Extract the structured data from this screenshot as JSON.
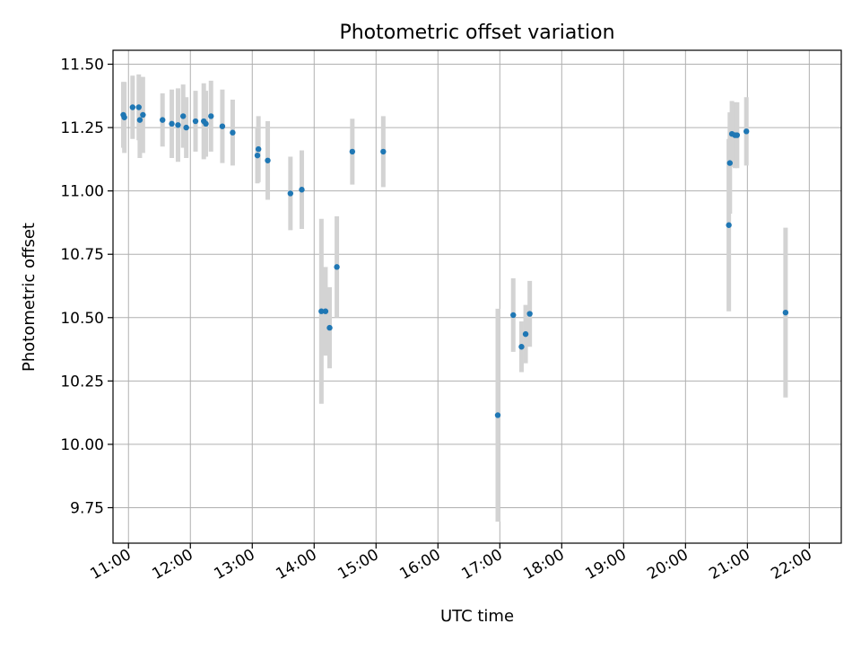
{
  "chart_data": {
    "type": "scatter",
    "title": "Photometric offset variation",
    "xlabel": "UTC time",
    "ylabel": "Photometric offset",
    "x_tick_labels": [
      "11:00",
      "12:00",
      "13:00",
      "14:00",
      "15:00",
      "16:00",
      "17:00",
      "18:00",
      "19:00",
      "20:00",
      "21:00",
      "22:00"
    ],
    "y_ticks": [
      9.75,
      10.0,
      10.25,
      10.5,
      10.75,
      11.0,
      11.25,
      11.5
    ],
    "y_tick_labels": [
      "9.75",
      "10.00",
      "10.25",
      "10.50",
      "10.75",
      "11.00",
      "11.25",
      "11.50"
    ],
    "xlim": [
      "10:45",
      "22:31"
    ],
    "ylim": [
      9.61,
      11.555
    ],
    "grid": true,
    "series": [
      {
        "marker_color": "#1f77b4",
        "errorbar_color": "#d3d3d3",
        "points": [
          {
            "x": "10:55",
            "y": 11.3,
            "yerr": 0.13
          },
          {
            "x": "10:56",
            "y": 11.29,
            "yerr": 0.14
          },
          {
            "x": "11:04",
            "y": 11.33,
            "yerr": 0.125
          },
          {
            "x": "11:10",
            "y": 11.33,
            "yerr": 0.13
          },
          {
            "x": "11:11",
            "y": 11.28,
            "yerr": 0.15
          },
          {
            "x": "11:14",
            "y": 11.3,
            "yerr": 0.15
          },
          {
            "x": "11:33",
            "y": 11.28,
            "yerr": 0.105
          },
          {
            "x": "11:42",
            "y": 11.265,
            "yerr": 0.135
          },
          {
            "x": "11:48",
            "y": 11.26,
            "yerr": 0.145
          },
          {
            "x": "11:53",
            "y": 11.295,
            "yerr": 0.125
          },
          {
            "x": "11:56",
            "y": 11.25,
            "yerr": 0.12
          },
          {
            "x": "12:05",
            "y": 11.275,
            "yerr": 0.12
          },
          {
            "x": "12:13",
            "y": 11.275,
            "yerr": 0.15
          },
          {
            "x": "12:15",
            "y": 11.265,
            "yerr": 0.13
          },
          {
            "x": "12:20",
            "y": 11.295,
            "yerr": 0.14
          },
          {
            "x": "12:31",
            "y": 11.255,
            "yerr": 0.145
          },
          {
            "x": "12:41",
            "y": 11.23,
            "yerr": 0.13
          },
          {
            "x": "13:05",
            "y": 11.14,
            "yerr": 0.11
          },
          {
            "x": "13:06",
            "y": 11.165,
            "yerr": 0.13
          },
          {
            "x": "13:15",
            "y": 11.12,
            "yerr": 0.155
          },
          {
            "x": "13:37",
            "y": 10.99,
            "yerr": 0.145
          },
          {
            "x": "13:48",
            "y": 11.005,
            "yerr": 0.155
          },
          {
            "x": "14:07",
            "y": 10.525,
            "yerr": 0.365
          },
          {
            "x": "14:11",
            "y": 10.525,
            "yerr": 0.175
          },
          {
            "x": "14:15",
            "y": 10.46,
            "yerr": 0.16
          },
          {
            "x": "14:22",
            "y": 10.7,
            "yerr": 0.2
          },
          {
            "x": "14:37",
            "y": 11.155,
            "yerr": 0.13
          },
          {
            "x": "15:07",
            "y": 11.155,
            "yerr": 0.14
          },
          {
            "x": "16:58",
            "y": 10.115,
            "yerr": 0.42
          },
          {
            "x": "17:13",
            "y": 10.51,
            "yerr": 0.145
          },
          {
            "x": "17:21",
            "y": 10.385,
            "yerr": 0.1
          },
          {
            "x": "17:25",
            "y": 10.435,
            "yerr": 0.115
          },
          {
            "x": "17:29",
            "y": 10.515,
            "yerr": 0.13
          },
          {
            "x": "20:42",
            "y": 10.865,
            "yerr": 0.34
          },
          {
            "x": "20:43",
            "y": 11.11,
            "yerr": 0.2
          },
          {
            "x": "20:45",
            "y": 11.225,
            "yerr": 0.13
          },
          {
            "x": "20:48",
            "y": 11.22,
            "yerr": 0.13
          },
          {
            "x": "20:50",
            "y": 11.22,
            "yerr": 0.13
          },
          {
            "x": "20:59",
            "y": 11.235,
            "yerr": 0.135
          },
          {
            "x": "21:37",
            "y": 10.52,
            "yerr": 0.335
          }
        ]
      }
    ]
  }
}
